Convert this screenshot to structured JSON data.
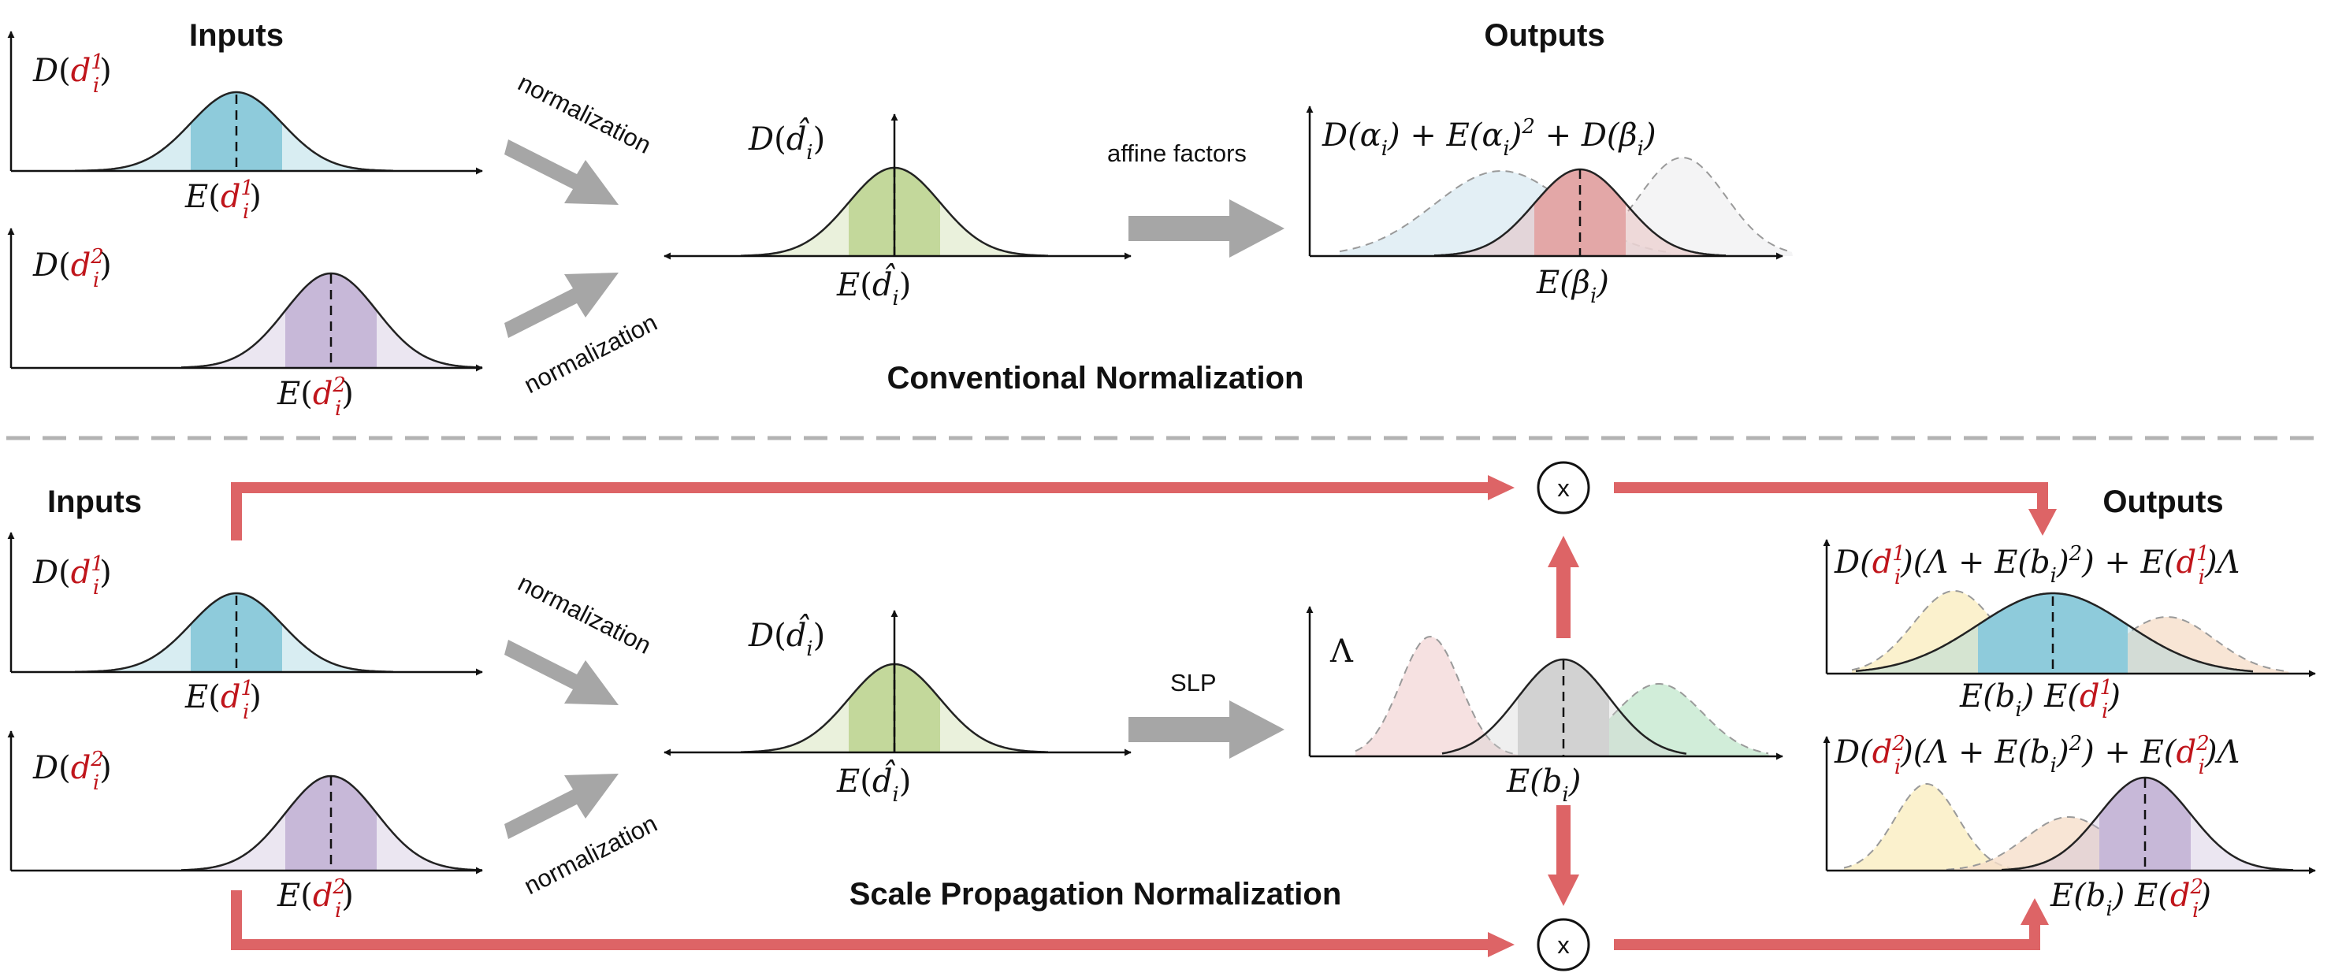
{
  "top": {
    "inputs_heading": "Inputs",
    "outputs_heading": "Outputs",
    "section_title": "Conventional Normalization",
    "arrow_label_upper": "normalization",
    "arrow_label_lower": "normalization",
    "transform_label": "affine factors",
    "input1": {
      "var": "D",
      "mean": "E",
      "sym": "d",
      "sub": "i",
      "sup": "1"
    },
    "input2": {
      "var": "D",
      "mean": "E",
      "sym": "d",
      "sub": "i",
      "sup": "2"
    },
    "normalized": {
      "var": "D",
      "mean": "E",
      "sym": "d̂",
      "sub": "i"
    },
    "output": {
      "ylabel_a": "D(α",
      "ylabel_b": ") + E(α",
      "ylabel_c": ")",
      "ylabel_d": " + D(β",
      "ylabel_e": ")",
      "sub": "i",
      "sq": "2",
      "xlabel_a": "E(β",
      "xlabel_b": ")"
    }
  },
  "bottom": {
    "inputs_heading": "Inputs",
    "outputs_heading": "Outputs",
    "section_title": "Scale Propagation Normalization",
    "arrow_label_upper": "normalization",
    "arrow_label_lower": "normalization",
    "transform_label": "SLP",
    "multiply_symbol": "x",
    "lambda": "Λ",
    "slp_xlabel_a": "E(b",
    "slp_xlabel_b": ")",
    "input1": {
      "var": "D",
      "mean": "E",
      "sym": "d",
      "sub": "i",
      "sup": "1"
    },
    "input2": {
      "var": "D",
      "mean": "E",
      "sym": "d",
      "sub": "i",
      "sup": "2"
    },
    "normalized": {
      "var": "D",
      "mean": "E",
      "sym": "d̂",
      "sub": "i"
    },
    "output1": {
      "a": "D(",
      "d": "d",
      "sup": "1",
      "sub": "i",
      "b": ")(Λ + E(b",
      "c": ")",
      "sq": "2",
      "e": ") + E(",
      "f": ")Λ",
      "x_a": "E(b",
      "x_b": ")  E(",
      "x_c": ")"
    },
    "output2": {
      "a": "D(",
      "d": "d",
      "sup": "2",
      "sub": "i",
      "b": ")(Λ + E(b",
      "c": ")",
      "sq": "2",
      "e": ") + E(",
      "f": ")Λ",
      "x_a": "E(b",
      "x_b": ")  E(",
      "x_c": ")"
    }
  },
  "colors": {
    "blue": "#8ecbdb",
    "purple": "#c7b8d8",
    "green": "#c3d89b",
    "rose": "#e3a7a7",
    "gray": "#d2d2d2",
    "red_arrow": "#dd6466",
    "gray_arrow": "#a6a6a6",
    "accent_text": "#c0151b"
  }
}
